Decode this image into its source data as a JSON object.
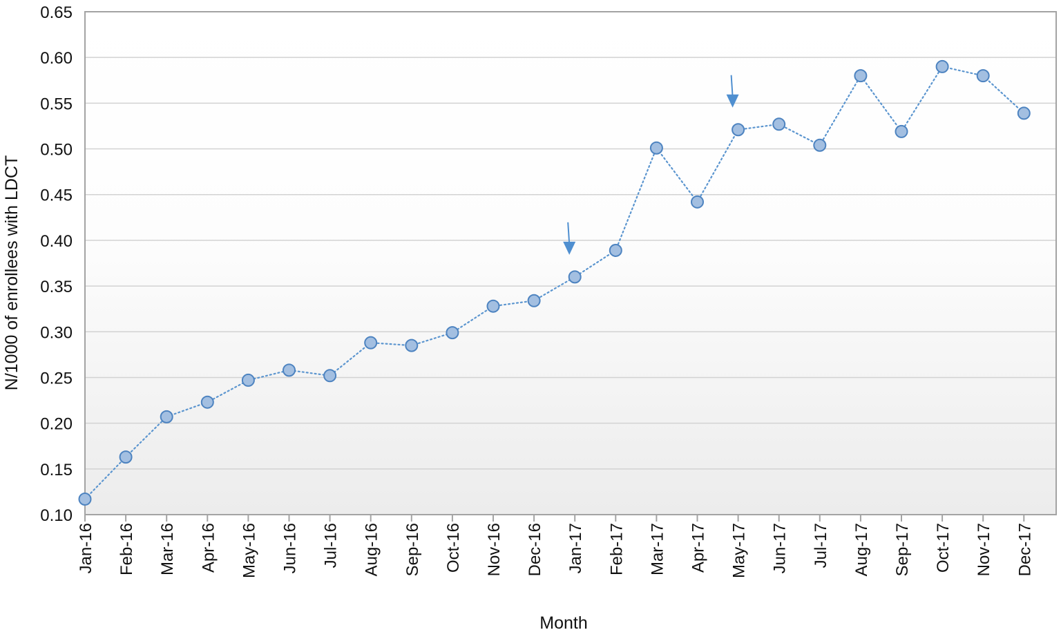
{
  "chart_data": {
    "type": "line",
    "title": "",
    "xlabel": "Month",
    "ylabel": "N/1000 of enrollees with LDCT",
    "categories": [
      "Jan-16",
      "Feb-16",
      "Mar-16",
      "Apr-16",
      "May-16",
      "Jun-16",
      "Jul-16",
      "Aug-16",
      "Sep-16",
      "Oct-16",
      "Nov-16",
      "Dec-16",
      "Jan-17",
      "Feb-17",
      "Mar-17",
      "Apr-17",
      "May-17",
      "Jun-17",
      "Jul-17",
      "Aug-17",
      "Sep-17",
      "Oct-17",
      "Nov-17",
      "Dec-17"
    ],
    "series": [
      {
        "values": [
          0.117,
          0.163,
          0.207,
          0.223,
          0.247,
          0.258,
          0.252,
          0.288,
          0.285,
          0.299,
          0.328,
          0.334,
          0.36,
          0.389,
          0.501,
          0.442,
          0.521,
          0.527,
          0.504,
          0.58,
          0.519,
          0.59,
          0.58,
          0.539
        ]
      }
    ],
    "ylim": [
      0.1,
      0.65
    ],
    "yticks": [
      "0.10",
      "0.15",
      "0.20",
      "0.25",
      "0.30",
      "0.35",
      "0.40",
      "0.45",
      "0.50",
      "0.55",
      "0.60",
      "0.65"
    ],
    "grid": "horizontal",
    "legend": "none",
    "annotations": [
      {
        "type": "arrow",
        "category": "Jan-17",
        "points_to_value": 0.36
      },
      {
        "type": "arrow",
        "category": "May-17",
        "points_to_value": 0.521
      }
    ],
    "colors": {
      "line": "#5b95cf",
      "marker_fill": "#a3bfe1",
      "marker_stroke": "#4d83c0",
      "arrow": "#4f8fd0",
      "grid": "#d2d2d2",
      "axis": "#a3a3a3",
      "bg_top": "#ffffff",
      "bg_bottom": "#ececec"
    }
  }
}
